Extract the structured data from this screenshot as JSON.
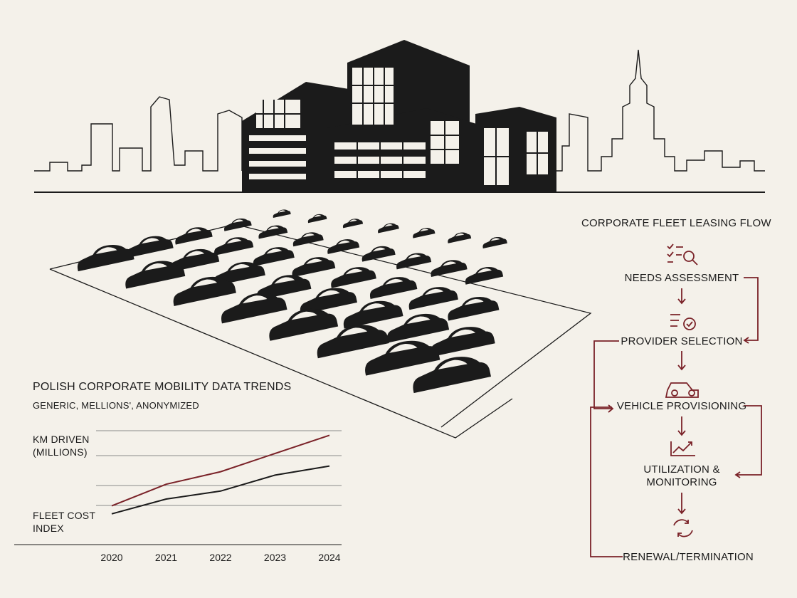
{
  "chart_data": {
    "type": "line",
    "title": "POLISH CORPORATE MOBILITY DATA TRENDS",
    "subtitle": "GENERIC, MELLIONS', ANONYMIZED",
    "categories": [
      "2020",
      "2021",
      "2022",
      "2023",
      "2024"
    ],
    "series": [
      {
        "name": "KM DRIVEN (MILLIONS)",
        "color": "#7a2228",
        "values": [
          34,
          53,
          64,
          80,
          96
        ]
      },
      {
        "name": "FLEET COST INDEX",
        "color": "#1b1b1b",
        "values": [
          27,
          40,
          47,
          61,
          69
        ]
      }
    ]
  },
  "flow": {
    "title": "CORPORATE FLEET LEASING FLOW",
    "steps": [
      "NEEDS ASSESSMENT",
      "PROVIDER SELECTION",
      "VEHICLE PROVISIONING",
      "UTILIZATION & MONITORING",
      "RENEWAL/TERMINATION"
    ]
  }
}
